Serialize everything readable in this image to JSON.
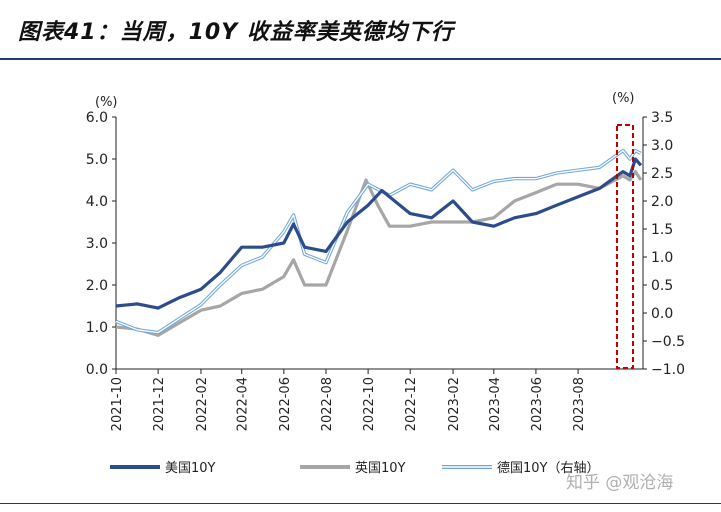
{
  "title": "图表41：当周，10Y 收益率美英德均下行",
  "watermark": "知乎 @观沧海",
  "colors": {
    "us": "#2c4c8c",
    "uk": "#a6a6a6",
    "de": "#6fa7dc",
    "highlight": "#c00000",
    "axis": "#222222"
  },
  "chart_data": {
    "type": "line",
    "left_unit": "(%)",
    "right_unit": "(%)",
    "xlabel": "",
    "ylabel": "",
    "x_ticks": [
      "2021-10",
      "2021-12",
      "2022-02",
      "2022-04",
      "2022-06",
      "2022-08",
      "2022-10",
      "2022-12",
      "2023-02",
      "2023-04",
      "2023-06",
      "2023-08"
    ],
    "ylim_left": [
      0,
      6
    ],
    "y_ticks_left": [
      "0.0",
      "1.0",
      "2.0",
      "3.0",
      "4.0",
      "5.0",
      "6.0"
    ],
    "ylim_right": [
      -1,
      3.5
    ],
    "y_ticks_right": [
      "−1.0",
      "−0.5",
      "0.0",
      "0.5",
      "1.0",
      "1.5",
      "2.0",
      "2.5",
      "3.0",
      "3.5"
    ],
    "grid": false,
    "legend_position": "bottom",
    "highlight_box": "latest week (2023-10)",
    "series": [
      {
        "name": "美国10Y",
        "axis": "left",
        "x": [
          "2021-10-01",
          "2021-11-01",
          "2021-12-01",
          "2022-01-01",
          "2022-02-01",
          "2022-03-01",
          "2022-04-01",
          "2022-05-01",
          "2022-06-01",
          "2022-06-15",
          "2022-07-01",
          "2022-08-01",
          "2022-09-01",
          "2022-10-01",
          "2022-10-21",
          "2022-11-01",
          "2022-12-01",
          "2023-01-01",
          "2023-02-01",
          "2023-03-01",
          "2023-04-01",
          "2023-05-01",
          "2023-06-01",
          "2023-07-01",
          "2023-08-01",
          "2023-09-01",
          "2023-10-05",
          "2023-10-15",
          "2023-10-23",
          "2023-10-31"
        ],
        "values": [
          1.5,
          1.55,
          1.45,
          1.7,
          1.9,
          2.3,
          2.9,
          2.9,
          3.0,
          3.45,
          2.9,
          2.8,
          3.5,
          3.9,
          4.25,
          4.1,
          3.7,
          3.6,
          4.0,
          3.5,
          3.4,
          3.6,
          3.7,
          3.9,
          4.1,
          4.3,
          4.7,
          4.6,
          5.0,
          4.85
        ]
      },
      {
        "name": "英国10Y",
        "axis": "left",
        "x": [
          "2021-10-01",
          "2021-11-01",
          "2021-12-01",
          "2022-01-01",
          "2022-02-01",
          "2022-03-01",
          "2022-04-01",
          "2022-05-01",
          "2022-06-01",
          "2022-06-15",
          "2022-07-01",
          "2022-08-01",
          "2022-09-01",
          "2022-09-28",
          "2022-10-15",
          "2022-11-01",
          "2022-12-01",
          "2023-01-01",
          "2023-02-01",
          "2023-03-01",
          "2023-04-01",
          "2023-05-01",
          "2023-06-01",
          "2023-07-01",
          "2023-08-01",
          "2023-09-01",
          "2023-10-05",
          "2023-10-15",
          "2023-10-23",
          "2023-10-31"
        ],
        "values": [
          1.0,
          0.95,
          0.8,
          1.1,
          1.4,
          1.5,
          1.8,
          1.9,
          2.2,
          2.6,
          2.0,
          2.0,
          3.3,
          4.5,
          3.9,
          3.4,
          3.4,
          3.5,
          3.5,
          3.5,
          3.6,
          4.0,
          4.2,
          4.4,
          4.4,
          4.3,
          4.6,
          4.5,
          4.7,
          4.5
        ]
      },
      {
        "name": "德国10Y（右轴）",
        "axis": "right",
        "x": [
          "2021-10-01",
          "2021-11-01",
          "2021-12-01",
          "2022-01-01",
          "2022-02-01",
          "2022-03-01",
          "2022-04-01",
          "2022-05-01",
          "2022-06-01",
          "2022-06-15",
          "2022-07-01",
          "2022-08-01",
          "2022-09-01",
          "2022-10-01",
          "2022-11-01",
          "2022-12-01",
          "2023-01-01",
          "2023-02-01",
          "2023-03-01",
          "2023-04-01",
          "2023-05-01",
          "2023-06-01",
          "2023-07-01",
          "2023-08-01",
          "2023-09-01",
          "2023-10-05",
          "2023-10-15",
          "2023-10-23",
          "2023-10-31"
        ],
        "values": [
          -0.15,
          -0.3,
          -0.35,
          -0.1,
          0.15,
          0.5,
          0.85,
          1.0,
          1.45,
          1.75,
          1.05,
          0.9,
          1.8,
          2.3,
          2.1,
          2.3,
          2.2,
          2.55,
          2.2,
          2.35,
          2.4,
          2.4,
          2.5,
          2.55,
          2.6,
          2.9,
          2.75,
          2.9,
          2.85
        ]
      }
    ]
  }
}
